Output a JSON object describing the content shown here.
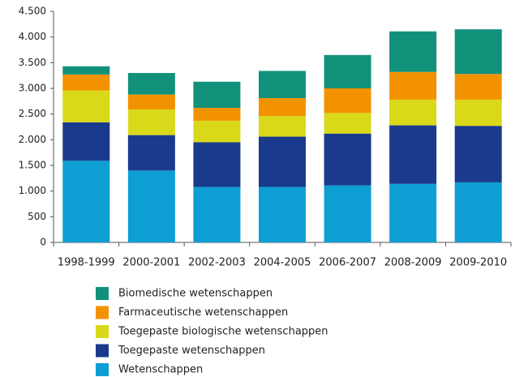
{
  "chart_data": {
    "type": "stacked_bar",
    "categories": [
      "1998-1999",
      "2000-2001",
      "2002-2003",
      "2004-2005",
      "2006-2007",
      "2008-2009",
      "2009-2010"
    ],
    "series": [
      {
        "name": "Biomedische wetenschappen",
        "color": "#12917a",
        "values": [
          160,
          420,
          510,
          530,
          650,
          790,
          870
        ]
      },
      {
        "name": "Farmaceutische wetenschappen",
        "color": "#f39200",
        "values": [
          310,
          290,
          250,
          350,
          480,
          540,
          500
        ]
      },
      {
        "name": "Toegepaste biologische wetenschappen",
        "color": "#d9d91a",
        "values": [
          620,
          500,
          420,
          400,
          400,
          500,
          510
        ]
      },
      {
        "name": "Toegepaste wetenschappen",
        "color": "#1a3a8e",
        "values": [
          750,
          690,
          870,
          980,
          1010,
          1140,
          1100
        ]
      },
      {
        "name": "Wetenschappen",
        "color": "#0d9ed4",
        "values": [
          1590,
          1400,
          1080,
          1080,
          1110,
          1140,
          1170
        ]
      }
    ],
    "ylim": [
      0,
      4500
    ],
    "yticks": [
      0,
      500,
      {
        "value": 1000,
        "label": "1.000"
      },
      {
        "value": 1500,
        "label": "1.500"
      },
      {
        "value": 2000,
        "label": "2.000"
      },
      {
        "value": 2500,
        "label": "2.500"
      },
      {
        "value": 3000,
        "label": "3.000"
      },
      {
        "value": 3500,
        "label": "3.500"
      },
      {
        "value": 4000,
        "label": "4.000"
      },
      {
        "value": 4500,
        "label": "4.500"
      }
    ],
    "grid": false
  }
}
